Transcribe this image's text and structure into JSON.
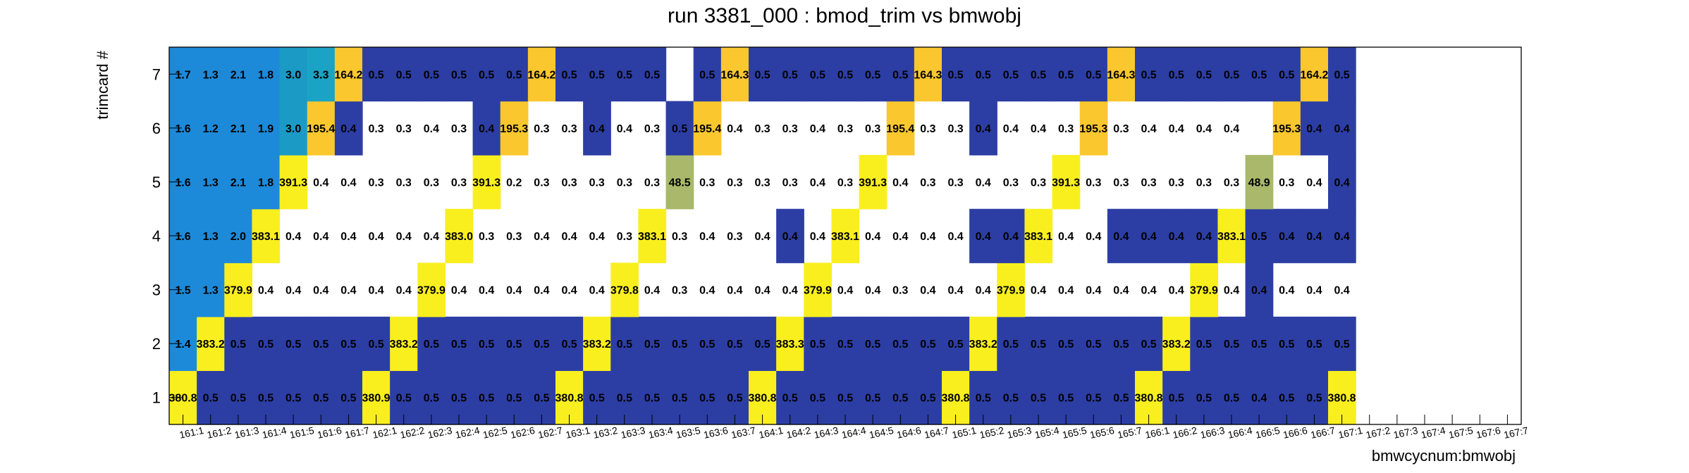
{
  "chart_data": {
    "type": "heatmap",
    "title": "run 3381_000 : bmod_trim vs bmwobj",
    "xlabel": "bmwcycnum:bmwobj",
    "ylabel": "trimcard #",
    "x_categories": [
      "161:1",
      "161:2",
      "161:3",
      "161:4",
      "161:5",
      "161:6",
      "161:7",
      "162:1",
      "162:2",
      "162:3",
      "162:4",
      "162:5",
      "162:6",
      "162:7",
      "163:1",
      "163:2",
      "163:3",
      "163:4",
      "163:5",
      "163:6",
      "163:7",
      "164:1",
      "164:2",
      "164:3",
      "164:4",
      "164:5",
      "164:6",
      "164:7",
      "165:1",
      "165:2",
      "165:3",
      "165:4",
      "165:5",
      "165:6",
      "165:7",
      "166:1",
      "166:2",
      "166:3",
      "166:4",
      "166:5",
      "166:6",
      "166:7",
      "167:1",
      "167:2",
      "167:3",
      "167:4",
      "167:5",
      "167:6",
      "167:7"
    ],
    "y_categories": [
      "1",
      "2",
      "3",
      "4",
      "5",
      "6",
      "7"
    ],
    "values": [
      [
        "380.8",
        "0.5",
        "0.5",
        "0.5",
        "0.5",
        "0.5",
        "0.5",
        "380.9",
        "0.5",
        "0.5",
        "0.5",
        "0.5",
        "0.5",
        "0.5",
        "380.8",
        "0.5",
        "0.5",
        "0.5",
        "0.5",
        "0.5",
        "0.5",
        "380.8",
        "0.5",
        "0.5",
        "0.5",
        "0.5",
        "0.5",
        "0.5",
        "380.8",
        "0.5",
        "0.5",
        "0.5",
        "0.5",
        "0.5",
        "0.5",
        "380.8",
        "0.5",
        "0.5",
        "0.5",
        "0.4",
        "0.5",
        "0.5",
        "380.8",
        "",
        "",
        "",
        "",
        "",
        ""
      ],
      [
        "1.4",
        "383.2",
        "0.5",
        "0.5",
        "0.5",
        "0.5",
        "0.5",
        "0.5",
        "383.2",
        "0.5",
        "0.5",
        "0.5",
        "0.5",
        "0.5",
        "0.5",
        "383.2",
        "0.5",
        "0.5",
        "0.5",
        "0.5",
        "0.5",
        "0.5",
        "383.3",
        "0.5",
        "0.5",
        "0.5",
        "0.5",
        "0.5",
        "0.5",
        "383.2",
        "0.5",
        "0.5",
        "0.5",
        "0.5",
        "0.5",
        "0.5",
        "383.2",
        "0.5",
        "0.5",
        "0.5",
        "0.5",
        "0.5",
        "0.5",
        "",
        "",
        "",
        "",
        "",
        ""
      ],
      [
        "1.5",
        "1.3",
        "379.9",
        "0.4",
        "0.4",
        "0.4",
        "0.4",
        "0.4",
        "0.4",
        "379.9",
        "0.4",
        "0.4",
        "0.4",
        "0.4",
        "0.4",
        "0.4",
        "379.8",
        "0.4",
        "0.3",
        "0.4",
        "0.4",
        "0.4",
        "0.4",
        "379.9",
        "0.4",
        "0.4",
        "0.3",
        "0.4",
        "0.4",
        "0.4",
        "379.9",
        "0.4",
        "0.4",
        "0.4",
        "0.4",
        "0.4",
        "0.4",
        "379.9",
        "0.4",
        "0.4",
        "0.4",
        "0.4",
        "0.4",
        "",
        "",
        "",
        "",
        "",
        ""
      ],
      [
        "1.6",
        "1.3",
        "2.0",
        "383.1",
        "0.4",
        "0.4",
        "0.4",
        "0.4",
        "0.4",
        "0.4",
        "383.0",
        "0.3",
        "0.3",
        "0.4",
        "0.4",
        "0.4",
        "0.3",
        "383.1",
        "0.3",
        "0.4",
        "0.3",
        "0.4",
        "0.4",
        "0.4",
        "383.1",
        "0.4",
        "0.4",
        "0.4",
        "0.4",
        "0.4",
        "0.4",
        "383.1",
        "0.4",
        "0.4",
        "0.4",
        "0.4",
        "0.4",
        "0.4",
        "383.1",
        "0.5",
        "0.4",
        "0.4",
        "0.4",
        "",
        "",
        "",
        "",
        "",
        ""
      ],
      [
        "1.6",
        "1.3",
        "2.1",
        "1.8",
        "391.3",
        "0.4",
        "0.4",
        "0.3",
        "0.3",
        "0.3",
        "0.3",
        "391.3",
        "0.2",
        "0.3",
        "0.3",
        "0.3",
        "0.3",
        "0.3",
        "48.5",
        "0.3",
        "0.3",
        "0.3",
        "0.3",
        "0.4",
        "0.3",
        "391.3",
        "0.4",
        "0.3",
        "0.3",
        "0.4",
        "0.3",
        "0.3",
        "391.3",
        "0.3",
        "0.3",
        "0.3",
        "0.3",
        "0.3",
        "0.3",
        "48.9",
        "0.3",
        "0.4",
        "0.4",
        "",
        "",
        "",
        "",
        "",
        ""
      ],
      [
        "1.6",
        "1.2",
        "2.1",
        "1.9",
        "3.0",
        "195.4",
        "0.4",
        "0.3",
        "0.3",
        "0.4",
        "0.3",
        "0.4",
        "195.3",
        "0.3",
        "0.3",
        "0.4",
        "0.4",
        "0.3",
        "0.5",
        "195.4",
        "0.4",
        "0.3",
        "0.3",
        "0.4",
        "0.3",
        "0.3",
        "195.4",
        "0.3",
        "0.3",
        "0.4",
        "0.4",
        "0.4",
        "0.3",
        "195.3",
        "0.3",
        "0.4",
        "0.4",
        "0.4",
        "0.4",
        "",
        "195.3",
        "0.4",
        "0.4",
        "",
        "",
        "",
        "",
        "",
        ""
      ],
      [
        "1.7",
        "1.3",
        "2.1",
        "1.8",
        "3.0",
        "3.3",
        "164.2",
        "0.5",
        "0.5",
        "0.5",
        "0.5",
        "0.5",
        "0.5",
        "164.2",
        "0.5",
        "0.5",
        "0.5",
        "0.5",
        "",
        "0.5",
        "164.3",
        "0.5",
        "0.5",
        "0.5",
        "0.5",
        "0.5",
        "0.5",
        "164.3",
        "0.5",
        "0.5",
        "0.5",
        "0.5",
        "0.5",
        "0.5",
        "164.3",
        "0.5",
        "0.5",
        "0.5",
        "0.5",
        "0.5",
        "0.5",
        "164.2",
        "0.5",
        "",
        "",
        "",
        "",
        "",
        ""
      ]
    ],
    "colors": {
      "rows": [
        [
          "#F9EF1F",
          "#2C3EA4",
          "#2C3EA4",
          "#2C3EA4",
          "#2C3EA4",
          "#2C3EA4",
          "#2C3EA4",
          "#F9EF1F",
          "#2C3EA4",
          "#2C3EA4",
          "#2C3EA4",
          "#2C3EA4",
          "#2C3EA4",
          "#2C3EA4",
          "#F9EF1F",
          "#2C3EA4",
          "#2C3EA4",
          "#2C3EA4",
          "#2C3EA4",
          "#2C3EA4",
          "#2C3EA4",
          "#F9EF1F",
          "#2C3EA4",
          "#2C3EA4",
          "#2C3EA4",
          "#2C3EA4",
          "#2C3EA4",
          "#2C3EA4",
          "#F9EF1F",
          "#2C3EA4",
          "#2C3EA4",
          "#2C3EA4",
          "#2C3EA4",
          "#2C3EA4",
          "#2C3EA4",
          "#F9EF1F",
          "#2C3EA4",
          "#2C3EA4",
          "#2C3EA4",
          "#2C3EA4",
          "#2C3EA4",
          "#2C3EA4",
          "#F9EF1F",
          "",
          "",
          "",
          "",
          "",
          ""
        ],
        [
          "#1D8AD9",
          "#F9EF1F",
          "#2C3EA4",
          "#2C3EA4",
          "#2C3EA4",
          "#2C3EA4",
          "#2C3EA4",
          "#2C3EA4",
          "#F9EF1F",
          "#2C3EA4",
          "#2C3EA4",
          "#2C3EA4",
          "#2C3EA4",
          "#2C3EA4",
          "#2C3EA4",
          "#F9EF1F",
          "#2C3EA4",
          "#2C3EA4",
          "#2C3EA4",
          "#2C3EA4",
          "#2C3EA4",
          "#2C3EA4",
          "#F9EF1F",
          "#2C3EA4",
          "#2C3EA4",
          "#2C3EA4",
          "#2C3EA4",
          "#2C3EA4",
          "#2C3EA4",
          "#F9EF1F",
          "#2C3EA4",
          "#2C3EA4",
          "#2C3EA4",
          "#2C3EA4",
          "#2C3EA4",
          "#2C3EA4",
          "#F9EF1F",
          "#2C3EA4",
          "#2C3EA4",
          "#2C3EA4",
          "#2C3EA4",
          "#2C3EA4",
          "#2C3EA4",
          "",
          "",
          "",
          "",
          "",
          ""
        ],
        [
          "#1D8AD9",
          "#1D8AD9",
          "#F9EF1F",
          "",
          "",
          "",
          "",
          "",
          "",
          "#F9EF1F",
          "",
          "",
          "",
          "",
          "",
          "",
          "#F9EF1F",
          "",
          "",
          "",
          "",
          "",
          "",
          "#F9EF1F",
          "",
          "",
          "",
          "",
          "",
          "",
          "#F9EF1F",
          "",
          "",
          "",
          "",
          "",
          "",
          "#F9EF1F",
          "",
          "#2C3EA4",
          "",
          "",
          "",
          "",
          "",
          "",
          "",
          "",
          ""
        ],
        [
          "#1D8AD9",
          "#1D8AD9",
          "#1D8AD9",
          "#F9EF1F",
          "",
          "",
          "",
          "",
          "",
          "",
          "#F9EF1F",
          "",
          "",
          "",
          "",
          "",
          "",
          "#F9EF1F",
          "",
          "",
          "",
          "",
          "#2C3EA4",
          "",
          "#F9EF1F",
          "",
          "",
          "",
          "",
          "#2C3EA4",
          "#2C3EA4",
          "#F9EF1F",
          "",
          "",
          "#2C3EA4",
          "#2C3EA4",
          "#2C3EA4",
          "#2C3EA4",
          "#F9EF1F",
          "#2C3EA4",
          "#2C3EA4",
          "#2C3EA4",
          "#2C3EA4",
          "",
          "",
          "",
          "",
          "",
          ""
        ],
        [
          "#1D8AD9",
          "#1D8AD9",
          "#1D8AD9",
          "#1D8AD9",
          "#F9EF1F",
          "",
          "",
          "",
          "",
          "",
          "",
          "#F9EF1F",
          "",
          "",
          "",
          "",
          "",
          "",
          "#A9B86A",
          "",
          "",
          "",
          "",
          "",
          "",
          "#F9EF1F",
          "",
          "",
          "",
          "",
          "",
          "",
          "#F9EF1F",
          "",
          "",
          "",
          "",
          "",
          "",
          "#A9B86A",
          "",
          "",
          "#2C3EA4",
          "",
          "",
          "",
          "",
          "",
          ""
        ],
        [
          "#1D8AD9",
          "#1D8AD9",
          "#1D8AD9",
          "#1D8AD9",
          "#1B9AC6",
          "#FAC72F",
          "#2C3EA4",
          "",
          "",
          "",
          "",
          "#2C3EA4",
          "#FAC72F",
          "",
          "",
          "#2C3EA4",
          "",
          "",
          "#2C3EA4",
          "#FAC72F",
          "",
          "",
          "",
          "",
          "",
          "",
          "#FAC72F",
          "",
          "",
          "#2C3EA4",
          "",
          "",
          "",
          "#FAC72F",
          "",
          "",
          "",
          "",
          "",
          "",
          "#FAC72F",
          "#2C3EA4",
          "#2C3EA4",
          "",
          "",
          "",
          "",
          "",
          ""
        ],
        [
          "#1D8AD9",
          "#1D8AD9",
          "#1D8AD9",
          "#1D8AD9",
          "#1B9AC6",
          "#1AA3C4",
          "#FAC72F",
          "#2C3EA4",
          "#2C3EA4",
          "#2C3EA4",
          "#2C3EA4",
          "#2C3EA4",
          "#2C3EA4",
          "#FAC72F",
          "#2C3EA4",
          "#2C3EA4",
          "#2C3EA4",
          "#2C3EA4",
          "",
          "#2C3EA4",
          "#FAC72F",
          "#2C3EA4",
          "#2C3EA4",
          "#2C3EA4",
          "#2C3EA4",
          "#2C3EA4",
          "#2C3EA4",
          "#FAC72F",
          "#2C3EA4",
          "#2C3EA4",
          "#2C3EA4",
          "#2C3EA4",
          "#2C3EA4",
          "#2C3EA4",
          "#FAC72F",
          "#2C3EA4",
          "#2C3EA4",
          "#2C3EA4",
          "#2C3EA4",
          "#2C3EA4",
          "#2C3EA4",
          "#FAC72F",
          "#2C3EA4",
          "",
          "",
          "",
          "",
          "",
          ""
        ]
      ]
    },
    "grid": false,
    "legend": "none"
  }
}
